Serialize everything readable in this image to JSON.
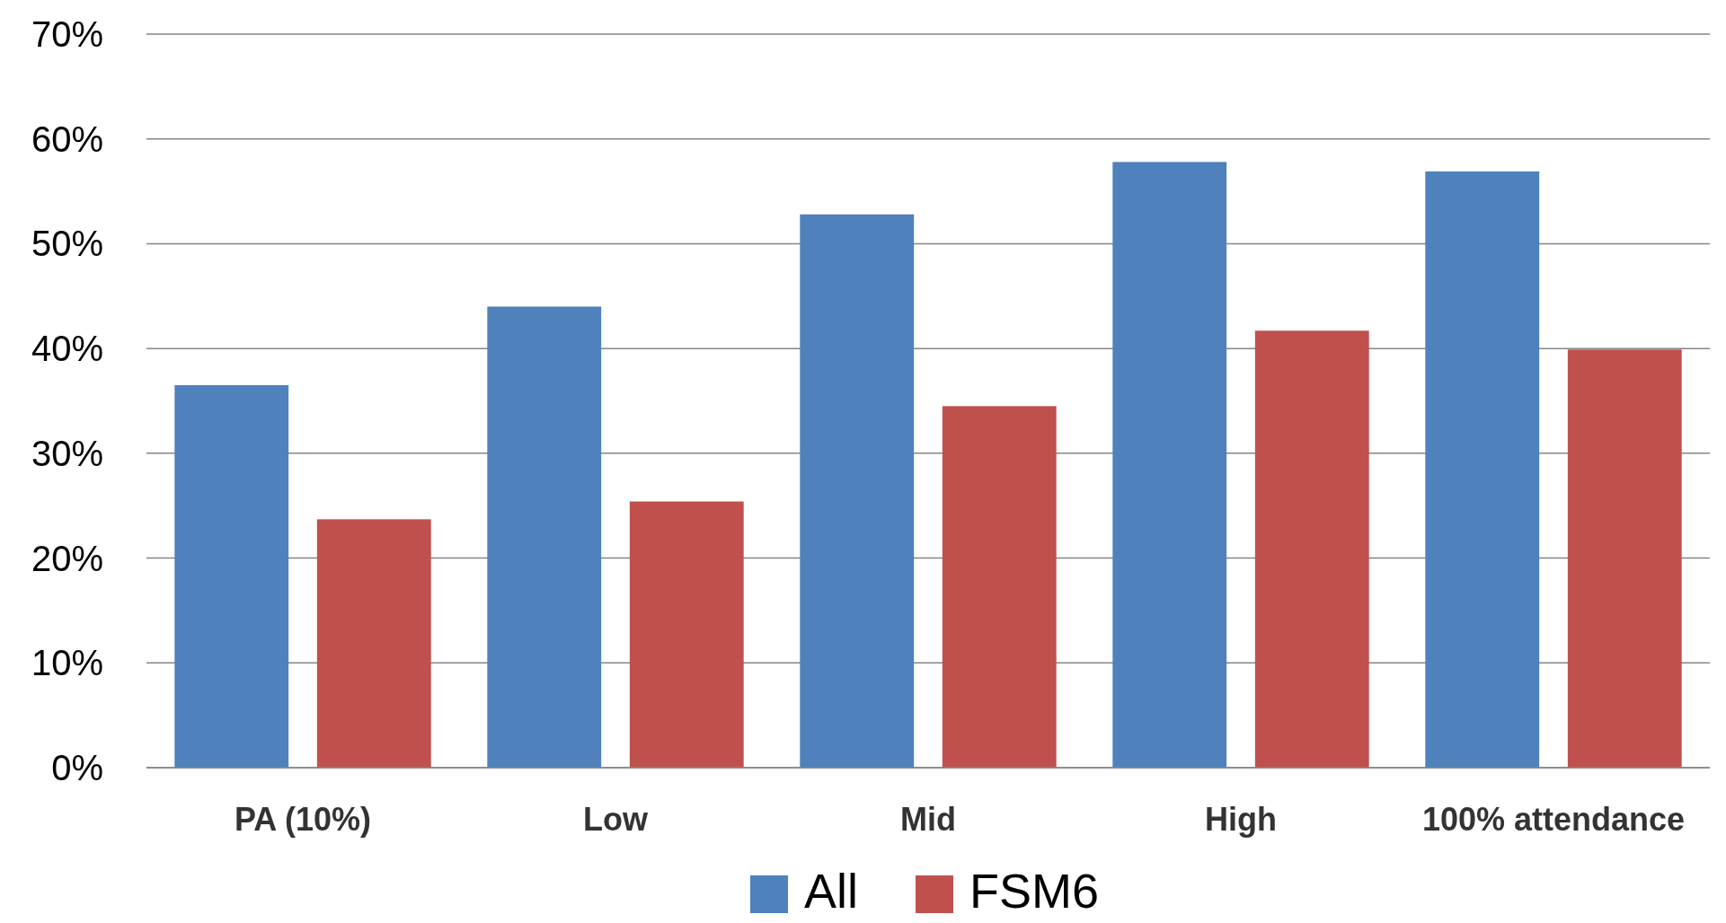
{
  "chart_data": {
    "type": "bar",
    "categories": [
      "PA (10%)",
      "Low",
      "Mid",
      "High",
      "100% attendance"
    ],
    "series": [
      {
        "name": "All",
        "color": "#4f81bd",
        "values": [
          36.5,
          44.0,
          52.8,
          57.8,
          56.9
        ]
      },
      {
        "name": "FSM6",
        "color": "#c0504d",
        "values": [
          23.7,
          25.4,
          34.5,
          41.7,
          39.9
        ]
      }
    ],
    "ylim": [
      0,
      70
    ],
    "yticks": [
      {
        "value": 0,
        "label": "0%"
      },
      {
        "value": 10,
        "label": "10%"
      },
      {
        "value": 20,
        "label": "20%"
      },
      {
        "value": 30,
        "label": "30%"
      },
      {
        "value": 40,
        "label": "40%"
      },
      {
        "value": 50,
        "label": "50%"
      },
      {
        "value": 60,
        "label": "60%"
      },
      {
        "value": 70,
        "label": "70%"
      }
    ],
    "grid": "y",
    "legend": "bottom"
  }
}
